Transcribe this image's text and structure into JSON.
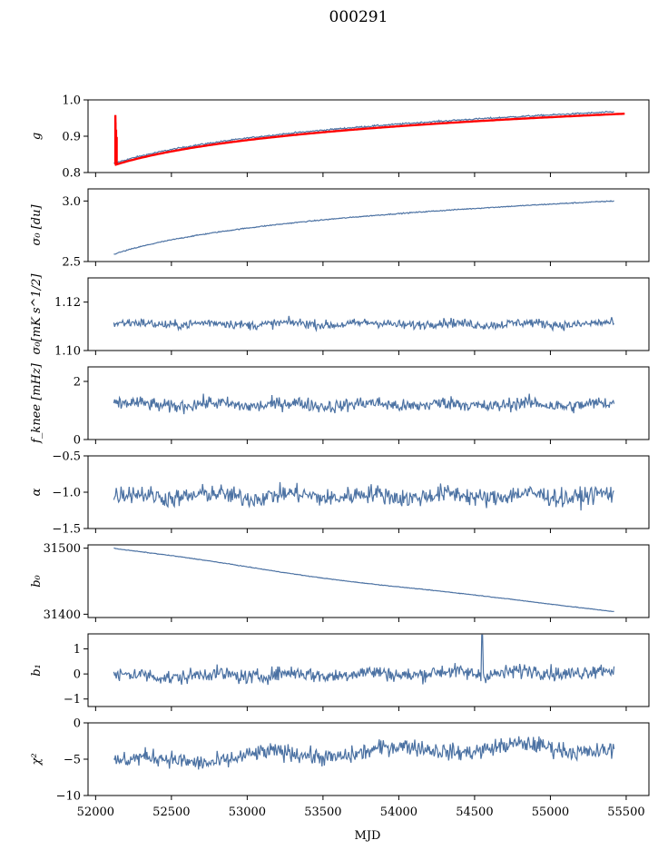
{
  "title": "000291",
  "chart_data": {
    "type": "line",
    "title": "000291",
    "xlabel": "MJD",
    "xlim": [
      51950,
      55650
    ],
    "x_ticks": [
      52000,
      52500,
      53000,
      53500,
      54000,
      54500,
      55000,
      55500
    ],
    "x_start": 52120,
    "x_end": 55420,
    "series_color": "#4c72a3",
    "overlay_color": "#ff0000",
    "panels": [
      {
        "id": "g",
        "ylabel": "g",
        "ylim": [
          0.8,
          1.0
        ],
        "yticks": [
          "0.8",
          "0.9",
          "1.0"
        ],
        "ytick_values": [
          0.8,
          0.9,
          1.0
        ],
        "curve": {
          "start": 0.825,
          "end": 0.967,
          "shape": "log",
          "noise": 0.002
        },
        "overlay": {
          "start": 0.822,
          "end": 0.962,
          "spike_to": 0.958,
          "spike_x": 52130,
          "end_x": 55490
        }
      },
      {
        "id": "sigma0",
        "ylabel": "σ₀ [du]",
        "ylim": [
          2.5,
          3.1
        ],
        "yticks": [
          "2.5",
          "3.0"
        ],
        "ytick_values": [
          2.5,
          3.0
        ],
        "curve": {
          "start": 2.56,
          "end": 3.0,
          "shape": "log",
          "noise": 0.004
        }
      },
      {
        "id": "sigma0-mk",
        "ylabel": "σ₀[mK s^1/2]",
        "ylim": [
          1.1,
          1.13
        ],
        "yticks": [
          "1.10",
          "1.12"
        ],
        "ytick_values": [
          1.1,
          1.12
        ],
        "curve": {
          "start": 1.111,
          "end": 1.111,
          "shape": "flat",
          "noise": 0.0018
        }
      },
      {
        "id": "fknee",
        "ylabel": "f_knee [mHz]",
        "ylim": [
          0,
          2.5
        ],
        "yticks": [
          "0",
          "2"
        ],
        "ytick_values": [
          0,
          2
        ],
        "curve": {
          "start": 1.2,
          "end": 1.2,
          "shape": "flat",
          "noise": 0.22
        }
      },
      {
        "id": "alpha",
        "ylabel": "α",
        "ylim": [
          -1.5,
          -0.5
        ],
        "yticks": [
          "−1.5",
          "−1.0",
          "−0.5"
        ],
        "ytick_values": [
          -1.5,
          -1.0,
          -0.5
        ],
        "curve": {
          "start": -1.05,
          "end": -1.05,
          "shape": "flat",
          "noise": 0.12
        }
      },
      {
        "id": "b0",
        "ylabel": "b₀",
        "ylim": [
          31395,
          31505
        ],
        "yticks": [
          "31400",
          "31500"
        ],
        "ytick_values": [
          31400,
          31500
        ],
        "curve": {
          "start": 31500,
          "end": 31404,
          "shape": "b0",
          "noise": 0.4
        }
      },
      {
        "id": "b1",
        "ylabel": "b₁",
        "ylim": [
          -1.3,
          1.6
        ],
        "yticks": [
          "−1",
          "0",
          "1"
        ],
        "ytick_values": [
          -1,
          0,
          1
        ],
        "curve": {
          "start": -0.1,
          "end": 0.1,
          "shape": "flat",
          "noise": 0.28,
          "spike_x": 54550,
          "spike_to": 1.55
        }
      },
      {
        "id": "chi2",
        "ylabel": "χ²",
        "ylim": [
          -10,
          0
        ],
        "yticks": [
          "−10",
          "−5",
          "0"
        ],
        "ytick_values": [
          -10,
          -5,
          0
        ],
        "curve": {
          "start": -5.5,
          "end": -3.5,
          "shape": "chi",
          "noise": 1.1
        }
      }
    ]
  }
}
